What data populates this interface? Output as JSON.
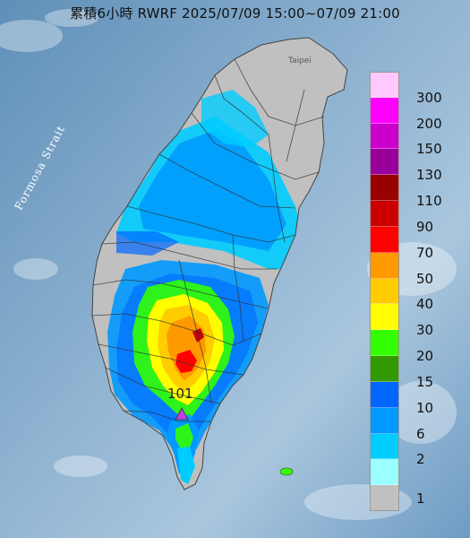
{
  "title": "累積6小時 RWRF 2025/07/09 15:00~07/09 21:00",
  "strait_label": "Formosa Strait",
  "city_label": "Taipei",
  "marker": {
    "label": "101",
    "icon": "triangle-marker-icon",
    "color": "#c040e0"
  },
  "legend": {
    "items": [
      {
        "label": "300",
        "color": "#ffc8ff"
      },
      {
        "label": "200",
        "color": "#ff00ff"
      },
      {
        "label": "150",
        "color": "#cc00cc"
      },
      {
        "label": "130",
        "color": "#990099"
      },
      {
        "label": "110",
        "color": "#990000"
      },
      {
        "label": "90",
        "color": "#cc0000"
      },
      {
        "label": "70",
        "color": "#ff0000"
      },
      {
        "label": "50",
        "color": "#ff9900"
      },
      {
        "label": "40",
        "color": "#ffcc00"
      },
      {
        "label": "30",
        "color": "#ffff00"
      },
      {
        "label": "20",
        "color": "#33ff00"
      },
      {
        "label": "15",
        "color": "#339900"
      },
      {
        "label": "10",
        "color": "#0066ff"
      },
      {
        "label": "6",
        "color": "#0099ff"
      },
      {
        "label": "2",
        "color": "#00ccff"
      },
      {
        "label": "1",
        "color": "#99ffff"
      },
      {
        "label": "",
        "color": "#c0c0c0"
      }
    ]
  },
  "colors": {
    "sea": "#7fa6c6",
    "land": "#c0c0c0",
    "boundary": "#333333"
  }
}
